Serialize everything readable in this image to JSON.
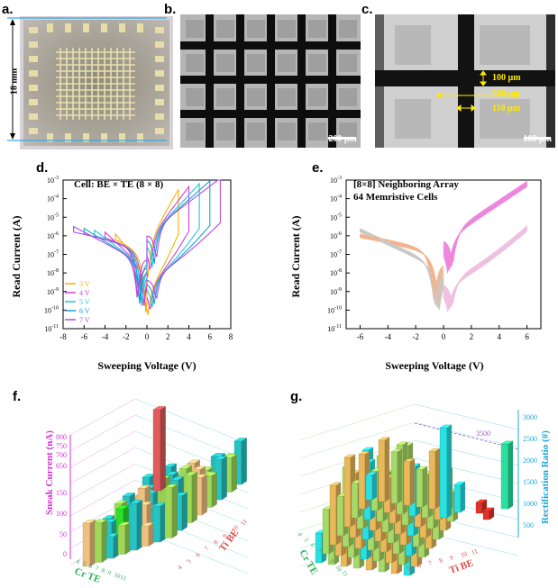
{
  "panels": {
    "a": {
      "label": "a.",
      "scale": "18 mm"
    },
    "b": {
      "label": "b.",
      "scale": "200 µm"
    },
    "c": {
      "label": "c.",
      "scale": "100 µm",
      "ann": [
        "100 µm",
        "380 µm",
        "110 µm"
      ]
    },
    "d": {
      "label": "d.",
      "title": "Cell: BE × TE (8 × 8)",
      "legend": [
        "3 V",
        "4 V",
        "5 V",
        "6 V",
        "7 V"
      ],
      "legend_colors": [
        "#f4b400",
        "#d63fd6",
        "#27c4e0",
        "#1aa0c9",
        "#b44ae0"
      ]
    },
    "e": {
      "label": "e.",
      "title1": "[8×8] Neighboring Array",
      "title2": "64 Memristive Cells"
    },
    "f": {
      "label": "f.",
      "zlabel": "Sneak Current (nA)",
      "xlabel": "Cr TE",
      "ylabel": "Ti BE",
      "zticks": [
        "800",
        "750",
        "700",
        "650",
        "150",
        "100",
        "50",
        "0"
      ],
      "xticks": [
        "4",
        "5",
        "6",
        "7",
        "8",
        "9",
        "10",
        "11"
      ],
      "yticks": [
        "4",
        "5",
        "6",
        "7",
        "8",
        "9",
        "10",
        "11"
      ]
    },
    "g": {
      "label": "g.",
      "zlabel": "Rectification Ratio (#)",
      "xlabel": "Cr TE",
      "ylabel": "Ti BE",
      "zticks": [
        "3000",
        "2500",
        "2000",
        "1500",
        "1000",
        "500"
      ],
      "note": "3500",
      "xticks": [
        "4",
        "5",
        "6",
        "7",
        "8",
        "9",
        "10",
        "11"
      ],
      "yticks": [
        "4",
        "5",
        "6",
        "7",
        "8",
        "9",
        "10",
        "11"
      ]
    }
  },
  "chart_data": [
    {
      "type": "line",
      "id": "d",
      "xlabel": "Sweeping Voltage (V)",
      "ylabel": "Read Current (A)",
      "xlim": [
        -8,
        8
      ],
      "ylim_log10": [
        -11,
        -3
      ],
      "xticks": [
        "-8",
        "-6",
        "-4",
        "-2",
        "0",
        "2",
        "4",
        "6",
        "8"
      ],
      "yticks": [
        "10-11",
        "10-10",
        "10-9",
        "10-8",
        "10-7",
        "10-6",
        "10-5",
        "10-4",
        "10-3"
      ],
      "series": [
        {
          "name": "3 V",
          "vmax": 3
        },
        {
          "name": "4 V",
          "vmax": 4
        },
        {
          "name": "5 V",
          "vmax": 5
        },
        {
          "name": "6 V",
          "vmax": 6
        },
        {
          "name": "7 V",
          "vmax": 7
        }
      ]
    },
    {
      "type": "line",
      "id": "e",
      "xlabel": "Sweeping Voltage (V)",
      "ylabel": "Read Current (A)",
      "xlim": [
        -7,
        7
      ],
      "ylim_log10": [
        -11,
        -3
      ],
      "xticks": [
        "-6",
        "-4",
        "-2",
        "0",
        "2",
        "4",
        "6"
      ],
      "yticks": [
        "10-11",
        "10-10",
        "10-9",
        "10-8",
        "10-7",
        "10-6",
        "10-5",
        "10-4",
        "10-3"
      ],
      "curves": 64
    }
  ]
}
